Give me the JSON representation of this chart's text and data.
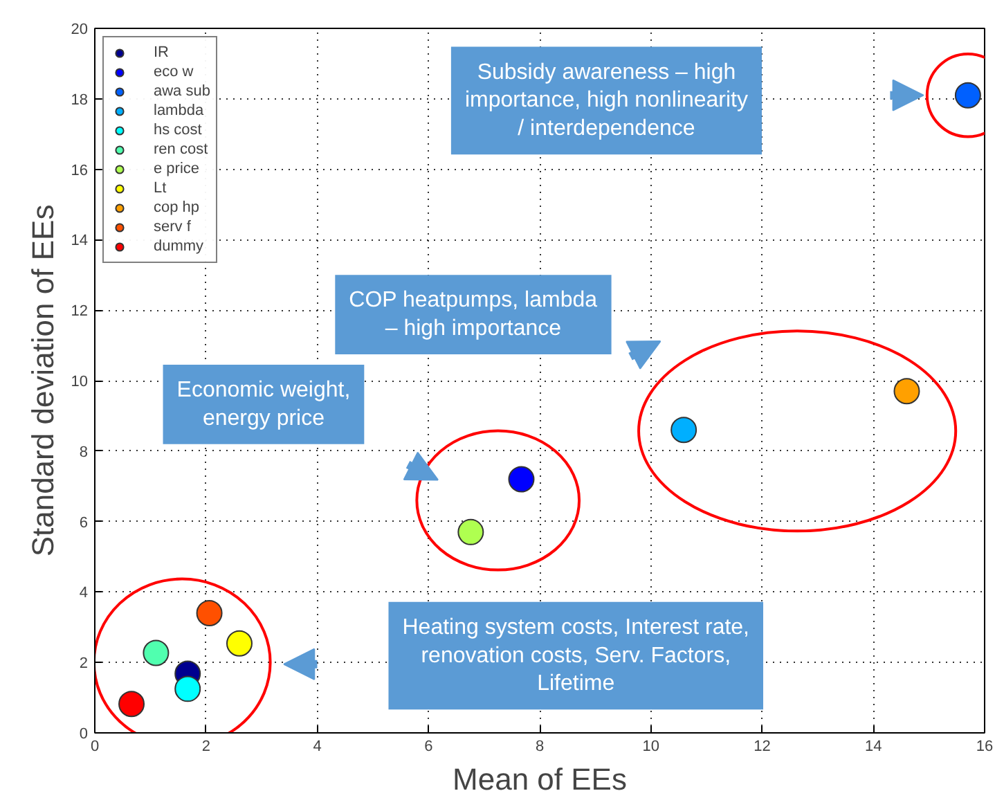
{
  "chart_data": {
    "type": "scatter",
    "xlabel": "Mean of EEs",
    "ylabel": "Standard deviation of EEs",
    "xlim": [
      0,
      16
    ],
    "ylim": [
      0,
      20
    ],
    "xticks": [
      0,
      2,
      4,
      6,
      8,
      10,
      12,
      14,
      16
    ],
    "yticks": [
      0,
      2,
      4,
      6,
      8,
      10,
      12,
      14,
      16,
      18,
      20
    ],
    "grid": true,
    "legend": "top left",
    "marker": "circle",
    "series": [
      {
        "name": "IR",
        "color": "#00008f",
        "x": [
          1.67
        ],
        "values": [
          1.68
        ]
      },
      {
        "name": "eco w",
        "color": "#0000ff",
        "x": [
          7.67
        ],
        "values": [
          7.2
        ]
      },
      {
        "name": "awa sub",
        "color": "#0060ff",
        "x": [
          15.7
        ],
        "values": [
          18.1
        ]
      },
      {
        "name": "lambda",
        "color": "#00afff",
        "x": [
          10.59
        ],
        "values": [
          8.6
        ]
      },
      {
        "name": "hs cost",
        "color": "#00ffff",
        "x": [
          1.67
        ],
        "values": [
          1.25
        ]
      },
      {
        "name": "ren cost",
        "color": "#50ffaf",
        "x": [
          1.1
        ],
        "values": [
          2.27
        ]
      },
      {
        "name": "e price",
        "color": "#afff50",
        "x": [
          6.76
        ],
        "values": [
          5.7
        ]
      },
      {
        "name": "Lt",
        "color": "#ffff00",
        "x": [
          2.6
        ],
        "values": [
          2.54
        ]
      },
      {
        "name": "cop hp",
        "color": "#ffa000",
        "x": [
          14.6
        ],
        "values": [
          9.7
        ]
      },
      {
        "name": "serv f",
        "color": "#ff5000",
        "x": [
          2.06
        ],
        "values": [
          3.4
        ]
      },
      {
        "name": "dummy",
        "color": "#ff0000",
        "x": [
          0.66
        ],
        "values": [
          0.82
        ]
      }
    ],
    "annotations": [
      "Subsidy awareness – high importance, high nonlinearity / interdependence",
      "COP heatpumps, lambda – high importance",
      "Economic weight, energy price",
      "Heating system costs, Interest rate, renovation costs, Serv. Factors, Lifetime"
    ]
  }
}
